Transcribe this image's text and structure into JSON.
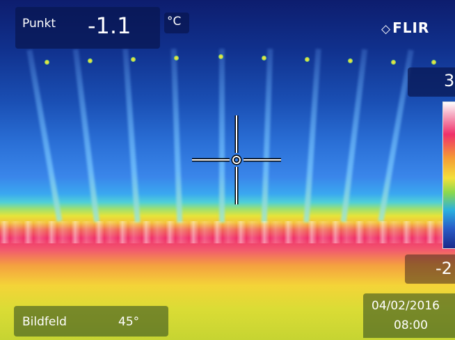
{
  "spot": {
    "label": "Punkt",
    "value": "-1.1",
    "unit": "°C"
  },
  "brand": {
    "name": "FLIR",
    "mark": "◇"
  },
  "scale": {
    "max": "3",
    "min": "-2"
  },
  "field_of_view": {
    "label": "Bildfeld",
    "value": "45°"
  },
  "timestamp": {
    "date": "04/02/2016",
    "time": "08:00"
  },
  "icons": {
    "crosshair": "crosshair-icon",
    "logo": "flir-logo-icon"
  },
  "colors": {
    "overlay": "#081650",
    "hot": "#f0306a",
    "cold": "#0d1d6e"
  }
}
